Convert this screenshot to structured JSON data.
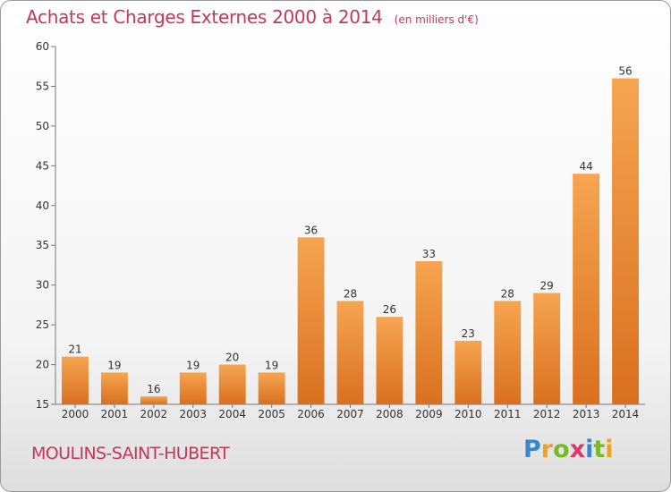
{
  "title": "Achats et Charges Externes 2000 à 2014",
  "subtitle": "(en milliers d'€)",
  "city": "MOULINS-SAINT-HUBERT",
  "logo": {
    "letters": [
      "P",
      "r",
      "o",
      "x",
      "i",
      "t",
      "i"
    ],
    "colors": [
      "#3a86c8",
      "#f0a020",
      "#7ab829",
      "#d83a6a",
      "#3a86c8",
      "#7ab829",
      "#f0a020"
    ]
  },
  "colors": {
    "title": "#c0395a",
    "bar_light": "#f6a550",
    "bar_dark": "#d9701f",
    "city": "#c0395a"
  },
  "chart_data": {
    "type": "bar",
    "categories": [
      "2000",
      "2001",
      "2002",
      "2003",
      "2004",
      "2005",
      "2006",
      "2007",
      "2008",
      "2009",
      "2010",
      "2011",
      "2012",
      "2013",
      "2014"
    ],
    "values": [
      21,
      19,
      16,
      19,
      20,
      19,
      36,
      28,
      26,
      33,
      23,
      28,
      29,
      44,
      56
    ],
    "data_labels": [
      "21",
      "19",
      "16",
      "19",
      "20",
      "19",
      "36",
      "28",
      "26",
      "33",
      "23",
      "28",
      "29",
      "44",
      "56"
    ],
    "ylim": [
      15,
      60
    ],
    "yticks": [
      15,
      20,
      25,
      30,
      35,
      40,
      45,
      50,
      55,
      60
    ],
    "grid": false,
    "legend": "none"
  }
}
